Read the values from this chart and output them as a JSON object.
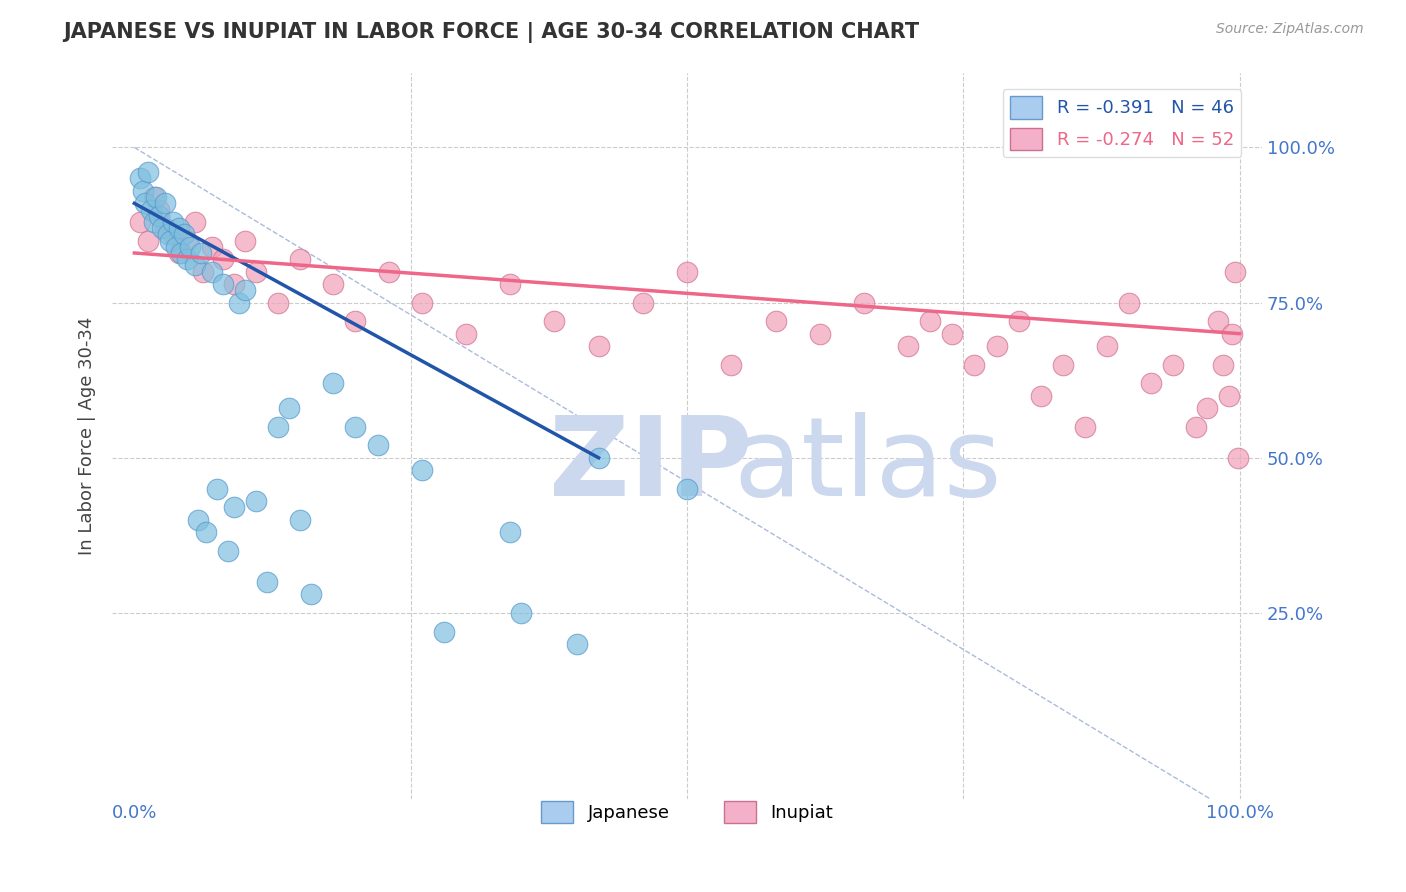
{
  "title": "JAPANESE VS INUPIAT IN LABOR FORCE | AGE 30-34 CORRELATION CHART",
  "source_text": "Source: ZipAtlas.com",
  "ylabel": "In Labor Force | Age 30-34",
  "xlim": [
    -0.02,
    1.02
  ],
  "ylim": [
    -0.05,
    1.12
  ],
  "japanese_color": "#7fbfdf",
  "japanese_edge": "#5599cc",
  "inupiat_color": "#f0a0b8",
  "inupiat_edge": "#d07090",
  "trendline_japanese_color": "#2255aa",
  "trendline_inupiat_color": "#ee6688",
  "diagonal_color": "#aabbdd",
  "background_color": "#ffffff",
  "grid_color": "#cccccc",
  "watermark_zip_color": "#ccd8ee",
  "watermark_atlas_color": "#ccd8ee",
  "japanese_x": [
    0.005,
    0.008,
    0.01,
    0.012,
    0.015,
    0.018,
    0.02,
    0.022,
    0.025,
    0.028,
    0.03,
    0.032,
    0.035,
    0.038,
    0.04,
    0.042,
    0.045,
    0.048,
    0.05,
    0.055,
    0.058,
    0.06,
    0.065,
    0.07,
    0.075,
    0.08,
    0.085,
    0.09,
    0.095,
    0.1,
    0.11,
    0.12,
    0.13,
    0.14,
    0.15,
    0.16,
    0.18,
    0.2,
    0.22,
    0.26,
    0.28,
    0.34,
    0.35,
    0.4,
    0.42,
    0.5
  ],
  "japanese_y": [
    0.95,
    0.93,
    0.91,
    0.96,
    0.9,
    0.88,
    0.92,
    0.89,
    0.87,
    0.91,
    0.86,
    0.85,
    0.88,
    0.84,
    0.87,
    0.83,
    0.86,
    0.82,
    0.84,
    0.81,
    0.4,
    0.83,
    0.38,
    0.8,
    0.45,
    0.78,
    0.35,
    0.42,
    0.75,
    0.77,
    0.43,
    0.3,
    0.55,
    0.58,
    0.4,
    0.28,
    0.62,
    0.55,
    0.52,
    0.48,
    0.22,
    0.38,
    0.25,
    0.2,
    0.5,
    0.45
  ],
  "inupiat_x": [
    0.005,
    0.012,
    0.018,
    0.022,
    0.028,
    0.035,
    0.04,
    0.048,
    0.055,
    0.062,
    0.07,
    0.08,
    0.09,
    0.1,
    0.11,
    0.13,
    0.15,
    0.18,
    0.2,
    0.23,
    0.26,
    0.3,
    0.34,
    0.38,
    0.42,
    0.46,
    0.5,
    0.54,
    0.58,
    0.62,
    0.66,
    0.7,
    0.72,
    0.74,
    0.76,
    0.78,
    0.8,
    0.82,
    0.84,
    0.86,
    0.88,
    0.9,
    0.92,
    0.94,
    0.96,
    0.97,
    0.98,
    0.985,
    0.99,
    0.993,
    0.996,
    0.998
  ],
  "inupiat_y": [
    0.88,
    0.85,
    0.92,
    0.9,
    0.87,
    0.86,
    0.83,
    0.85,
    0.88,
    0.8,
    0.84,
    0.82,
    0.78,
    0.85,
    0.8,
    0.75,
    0.82,
    0.78,
    0.72,
    0.8,
    0.75,
    0.7,
    0.78,
    0.72,
    0.68,
    0.75,
    0.8,
    0.65,
    0.72,
    0.7,
    0.75,
    0.68,
    0.72,
    0.7,
    0.65,
    0.68,
    0.72,
    0.6,
    0.65,
    0.55,
    0.68,
    0.75,
    0.62,
    0.65,
    0.55,
    0.58,
    0.72,
    0.65,
    0.6,
    0.7,
    0.8,
    0.5
  ],
  "trendline_j_x0": 0.0,
  "trendline_j_y0": 0.91,
  "trendline_j_x1": 0.42,
  "trendline_j_y1": 0.5,
  "trendline_i_x0": 0.0,
  "trendline_i_y0": 0.83,
  "trendline_i_x1": 1.0,
  "trendline_i_y1": 0.7
}
